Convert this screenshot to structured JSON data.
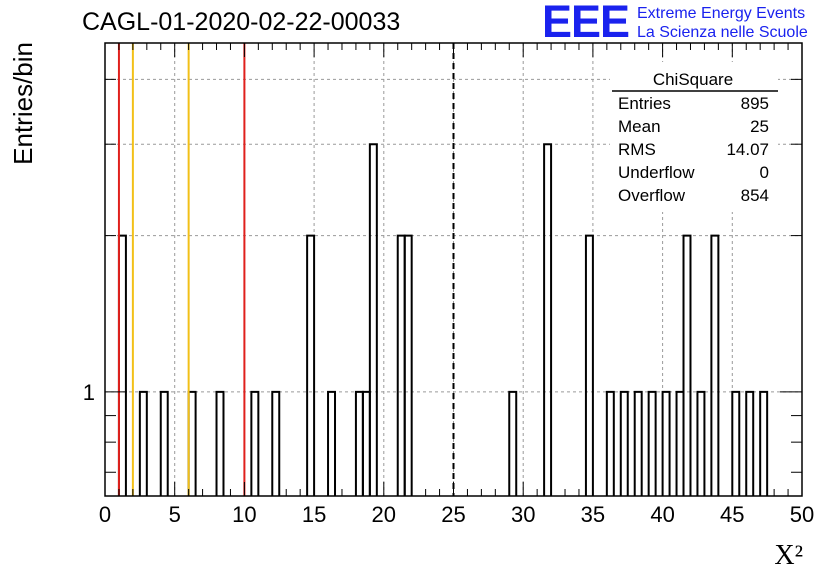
{
  "header": {
    "run_title": "CAGL-01-2020-02-22-00033",
    "logo_mark": "EEE",
    "logo_line1": "Extreme Energy Events",
    "logo_line2": "La Scienza nelle Scuole",
    "logo_color": "#1a22ee"
  },
  "stats_box": {
    "title": "ChiSquare",
    "rows": [
      {
        "label": "Entries",
        "value": "895"
      },
      {
        "label": "Mean",
        "value": "25"
      },
      {
        "label": "RMS",
        "value": "14.07"
      },
      {
        "label": "Underflow",
        "value": "0"
      },
      {
        "label": "Overflow",
        "value": "854"
      }
    ]
  },
  "chart_data": {
    "type": "histogram",
    "title": "CAGL-01-2020-02-22-00033",
    "xlabel": "X²",
    "ylabel": "Entries/bin",
    "y_scale": "log",
    "xlim": [
      0,
      50
    ],
    "grid": true,
    "x_ticks": [
      "0",
      "5",
      "10",
      "15",
      "20",
      "25",
      "30",
      "35",
      "40",
      "45",
      "50"
    ],
    "y_tick_labels": [
      {
        "value": 1,
        "label": "1"
      }
    ],
    "bin_width": 0.5,
    "bins": [
      {
        "x": 1.0,
        "count": 2
      },
      {
        "x": 2.5,
        "count": 1
      },
      {
        "x": 4.0,
        "count": 1
      },
      {
        "x": 6.0,
        "count": 1
      },
      {
        "x": 8.0,
        "count": 1
      },
      {
        "x": 10.5,
        "count": 1
      },
      {
        "x": 12.0,
        "count": 1
      },
      {
        "x": 14.5,
        "count": 2
      },
      {
        "x": 16.0,
        "count": 1
      },
      {
        "x": 18.0,
        "count": 1
      },
      {
        "x": 18.5,
        "count": 1
      },
      {
        "x": 19.0,
        "count": 3
      },
      {
        "x": 21.0,
        "count": 2
      },
      {
        "x": 21.5,
        "count": 2
      },
      {
        "x": 29.0,
        "count": 1
      },
      {
        "x": 31.5,
        "count": 3
      },
      {
        "x": 34.5,
        "count": 2
      },
      {
        "x": 36.0,
        "count": 1
      },
      {
        "x": 37.0,
        "count": 1
      },
      {
        "x": 38.0,
        "count": 1
      },
      {
        "x": 39.0,
        "count": 1
      },
      {
        "x": 40.0,
        "count": 1
      },
      {
        "x": 41.0,
        "count": 1
      },
      {
        "x": 41.5,
        "count": 2
      },
      {
        "x": 42.5,
        "count": 1
      },
      {
        "x": 43.5,
        "count": 2
      },
      {
        "x": 45.0,
        "count": 1
      },
      {
        "x": 46.0,
        "count": 1
      },
      {
        "x": 47.0,
        "count": 1
      }
    ],
    "reference_lines": [
      {
        "x": 1,
        "color": "#e0201c",
        "style": "solid"
      },
      {
        "x": 2,
        "color": "#f2c018",
        "style": "solid"
      },
      {
        "x": 6,
        "color": "#f2c018",
        "style": "solid"
      },
      {
        "x": 10,
        "color": "#e0201c",
        "style": "solid"
      },
      {
        "x": 25,
        "color": "#000000",
        "style": "dashed"
      }
    ]
  }
}
